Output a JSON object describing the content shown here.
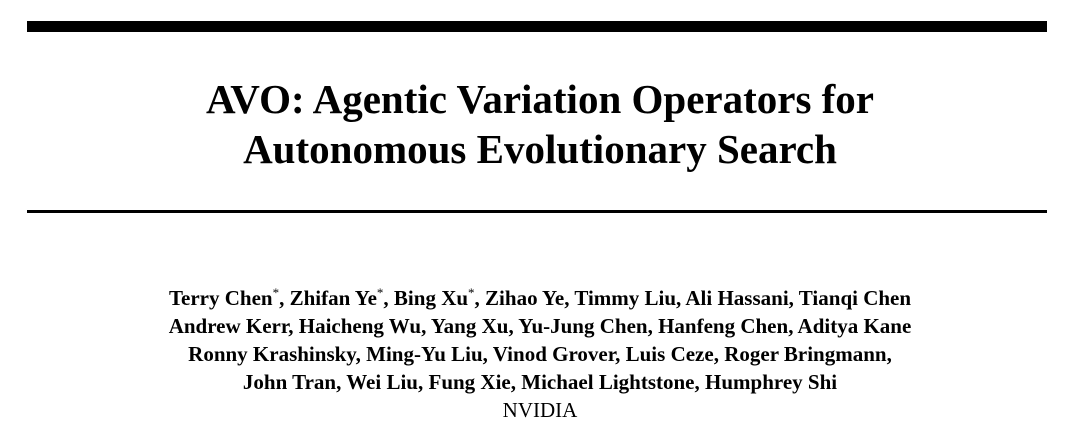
{
  "header": {
    "title_lines": [
      "AVO: Agentic Variation Operators for",
      "Autonomous Evolutionary Search"
    ]
  },
  "authors": {
    "lines": [
      [
        {
          "name": "Terry Chen",
          "mark": "*",
          "sep": ","
        },
        {
          "name": "Zhifan Ye",
          "mark": "*",
          "sep": ","
        },
        {
          "name": "Bing Xu",
          "mark": "*",
          "sep": ","
        },
        {
          "name": "Zihao Ye",
          "sep": ","
        },
        {
          "name": "Timmy Liu",
          "sep": ","
        },
        {
          "name": "Ali Hassani",
          "sep": ","
        },
        {
          "name": "Tianqi Chen"
        }
      ],
      [
        {
          "name": "Andrew Kerr",
          "sep": ","
        },
        {
          "name": "Haicheng Wu",
          "sep": ","
        },
        {
          "name": "Yang Xu",
          "sep": ","
        },
        {
          "name": "Yu-Jung Chen",
          "sep": ","
        },
        {
          "name": "Hanfeng Chen",
          "sep": ","
        },
        {
          "name": "Aditya Kane"
        }
      ],
      [
        {
          "name": "Ronny Krashinsky",
          "sep": ","
        },
        {
          "name": "Ming-Yu Liu",
          "sep": ","
        },
        {
          "name": "Vinod Grover",
          "sep": ","
        },
        {
          "name": "Luis Ceze",
          "sep": ","
        },
        {
          "name": "Roger Bringmann",
          "sep": ","
        }
      ],
      [
        {
          "name": "John Tran",
          "sep": ","
        },
        {
          "name": "Wei Liu",
          "sep": ","
        },
        {
          "name": "Fung Xie",
          "sep": ","
        },
        {
          "name": "Michael Lightstone",
          "sep": ","
        },
        {
          "name": "Humphrey Shi"
        }
      ]
    ],
    "affiliation": "NVIDIA"
  }
}
